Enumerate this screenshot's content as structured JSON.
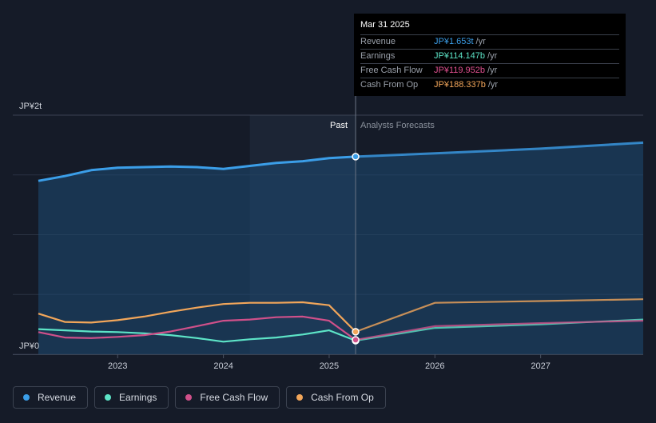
{
  "tooltip": {
    "date": "Mar 31 2025",
    "rows": [
      {
        "label": "Revenue",
        "value": "JP¥1.653t",
        "unit": "/yr",
        "color": "#3b9ee8"
      },
      {
        "label": "Earnings",
        "value": "JP¥114.147b",
        "unit": "/yr",
        "color": "#5de4c7"
      },
      {
        "label": "Free Cash Flow",
        "value": "JP¥119.952b",
        "unit": "/yr",
        "color": "#e0508f"
      },
      {
        "label": "Cash From Op",
        "value": "JP¥188.337b",
        "unit": "/yr",
        "color": "#f2a65a"
      }
    ]
  },
  "legend": [
    {
      "label": "Revenue",
      "color": "#3b9ee8"
    },
    {
      "label": "Earnings",
      "color": "#5de4c7"
    },
    {
      "label": "Free Cash Flow",
      "color": "#d0508a"
    },
    {
      "label": "Cash From Op",
      "color": "#f2a65a"
    }
  ],
  "chart_data": {
    "type": "area",
    "ylabel_top": "JP¥2t",
    "ylabel_bottom": "JP¥0",
    "ylim": [
      0,
      2.0
    ],
    "xlim": [
      2022.25,
      2027.97
    ],
    "x_ticks": [
      "2023",
      "2024",
      "2025",
      "2026",
      "2027"
    ],
    "x_tick_values": [
      2023,
      2024,
      2025,
      2026,
      2027
    ],
    "past_label": "Past",
    "forecast_label": "Analysts Forecasts",
    "divider_x": 2025.25,
    "highlight_start_x": 2024.25,
    "grid": true,
    "legend_position": "bottom-left",
    "series": [
      {
        "name": "Revenue",
        "color": "#3b9ee8",
        "area": true,
        "x": [
          2022.25,
          2022.5,
          2022.75,
          2023.0,
          2023.25,
          2023.5,
          2023.75,
          2024.0,
          2024.25,
          2024.5,
          2024.75,
          2025.0,
          2025.25
        ],
        "y": [
          1.45,
          1.49,
          1.54,
          1.56,
          1.565,
          1.57,
          1.565,
          1.55,
          1.575,
          1.6,
          1.615,
          1.64,
          1.653
        ],
        "forecast_x": [
          2025.25,
          2026.0,
          2027.0,
          2027.97
        ],
        "forecast_y": [
          1.653,
          1.68,
          1.72,
          1.77
        ]
      },
      {
        "name": "Earnings",
        "color": "#5de4c7",
        "area": false,
        "x": [
          2022.25,
          2022.5,
          2022.75,
          2023.0,
          2023.25,
          2023.5,
          2023.75,
          2024.0,
          2024.25,
          2024.5,
          2024.75,
          2025.0,
          2025.25
        ],
        "y": [
          0.21,
          0.2,
          0.19,
          0.185,
          0.175,
          0.16,
          0.135,
          0.105,
          0.125,
          0.14,
          0.165,
          0.2,
          0.114
        ],
        "forecast_x": [
          2025.25,
          2026.0,
          2027.0,
          2027.97
        ],
        "forecast_y": [
          0.114,
          0.22,
          0.25,
          0.29
        ]
      },
      {
        "name": "Free Cash Flow",
        "color": "#d0508a",
        "area": false,
        "x": [
          2022.25,
          2022.5,
          2022.75,
          2023.0,
          2023.25,
          2023.5,
          2023.75,
          2024.0,
          2024.25,
          2024.5,
          2024.75,
          2025.0,
          2025.25
        ],
        "y": [
          0.185,
          0.14,
          0.135,
          0.145,
          0.16,
          0.19,
          0.235,
          0.28,
          0.29,
          0.31,
          0.315,
          0.28,
          0.12
        ],
        "forecast_x": [
          2025.25,
          2026.0,
          2027.0,
          2027.97
        ],
        "forecast_y": [
          0.12,
          0.235,
          0.26,
          0.28
        ]
      },
      {
        "name": "Cash From Op",
        "color": "#f2a65a",
        "area": false,
        "x": [
          2022.25,
          2022.5,
          2022.75,
          2023.0,
          2023.25,
          2023.5,
          2023.75,
          2024.0,
          2024.25,
          2024.5,
          2024.75,
          2025.0,
          2025.25
        ],
        "y": [
          0.34,
          0.27,
          0.265,
          0.285,
          0.315,
          0.355,
          0.39,
          0.42,
          0.43,
          0.43,
          0.435,
          0.41,
          0.188
        ],
        "forecast_x": [
          2025.25,
          2026.0,
          2027.0,
          2027.97
        ],
        "forecast_y": [
          0.188,
          0.43,
          0.445,
          0.46
        ]
      }
    ]
  }
}
